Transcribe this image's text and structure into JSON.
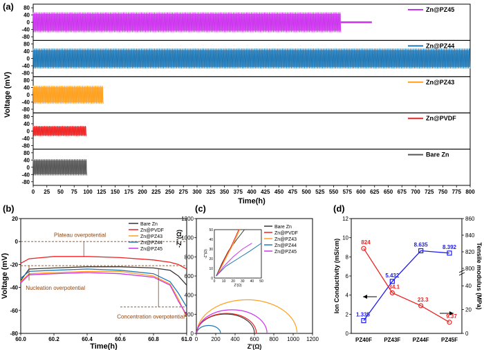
{
  "chart_data": [
    {
      "panel": "(a)",
      "type": "line",
      "xlabel": "Time(h)",
      "ylabel": "Voltage (mV)",
      "xlim": [
        0,
        800
      ],
      "x_ticks": [
        0,
        25,
        50,
        75,
        100,
        125,
        150,
        175,
        200,
        225,
        250,
        275,
        300,
        325,
        350,
        375,
        400,
        425,
        450,
        475,
        500,
        525,
        550,
        575,
        600,
        625,
        650,
        675,
        700,
        725,
        750,
        775,
        800
      ],
      "y_ticks": [
        "-80",
        "-40",
        "0",
        "40",
        "80"
      ],
      "y_ticks_top": [
        "80",
        "40",
        "0",
        "-40",
        "-80"
      ],
      "legend_placement": "top-right of each subplot",
      "series": [
        {
          "name": "Zn@PZ45",
          "color": "#cc33ee",
          "end_time_h": 620,
          "amplitude_mV": 55,
          "short_circuit_h": 563
        },
        {
          "name": "Zn@PZ44",
          "color": "#1f77b4",
          "end_time_h": 800,
          "amplitude_mV": 55
        },
        {
          "name": "Zn@PZ43",
          "color": "#ff9f1c",
          "end_time_h": 128,
          "amplitude_mV": 50
        },
        {
          "name": "Zn@PVDF",
          "color": "#ee2222",
          "end_time_h": 97,
          "amplitude_mV": 28
        },
        {
          "name": "Bare Zn",
          "color": "#555555",
          "end_time_h": 98,
          "amplitude_mV": 45
        }
      ]
    },
    {
      "panel": "(b)",
      "type": "line",
      "xlabel": "Time(h)",
      "ylabel": "Voltage (mV)",
      "xlim": [
        60.0,
        61.0
      ],
      "ylim": [
        -80,
        20
      ],
      "x_ticks": [
        "60.0",
        "60.2",
        "60.4",
        "60.6",
        "60.8",
        "61.0"
      ],
      "y_ticks": [
        "20",
        "0",
        "-20",
        "-40",
        "-60",
        "-80"
      ],
      "annotations": [
        "Plateau overpotential",
        "Nucleation overpotential",
        "Concentration overpotential"
      ],
      "series": [
        {
          "name": "Bare Zn",
          "color": "#333333",
          "x": [
            60.0,
            60.05,
            60.2,
            60.4,
            60.6,
            60.8,
            60.9,
            60.95,
            61.0
          ],
          "y": [
            -34,
            -24,
            -23,
            -22,
            -22,
            -23,
            -25,
            -30,
            -38
          ]
        },
        {
          "name": "Zn@PVDF",
          "color": "#ee2222",
          "x": [
            60.0,
            60.05,
            60.2,
            60.4,
            60.6,
            60.8,
            60.9,
            60.95,
            61.0
          ],
          "y": [
            -19,
            -15,
            -13,
            -13,
            -14,
            -16,
            -18,
            -20,
            -24
          ]
        },
        {
          "name": "Zn@PZ43",
          "color": "#ff9f1c",
          "x": [
            60.0,
            60.05,
            60.2,
            60.4,
            60.6,
            60.8,
            60.9,
            60.95,
            61.0
          ],
          "y": [
            -35,
            -28,
            -27,
            -26,
            -26,
            -30,
            -37,
            -50,
            -66
          ]
        },
        {
          "name": "Zn@PZ44",
          "color": "#1f77b4",
          "x": [
            60.0,
            60.05,
            60.2,
            60.4,
            60.6,
            60.8,
            60.9,
            60.95,
            61.0
          ],
          "y": [
            -32,
            -26,
            -25,
            -24,
            -25,
            -28,
            -35,
            -45,
            -57
          ]
        },
        {
          "name": "Zn@PZ45",
          "color": "#cc33ee",
          "x": [
            60.0,
            60.05,
            60.2,
            60.4,
            60.6,
            60.8,
            60.9,
            60.95,
            61.0
          ],
          "y": [
            -36,
            -29,
            -28,
            -27,
            -28,
            -31,
            -38,
            -52,
            -64
          ]
        }
      ]
    },
    {
      "panel": "(c)",
      "type": "scatter",
      "xlabel": "Z'(Ω)",
      "ylabel": "-Z''(Ω)",
      "xlim": [
        0,
        1200
      ],
      "ylim": [
        0,
        1200
      ],
      "x_ticks": [
        "0",
        "200",
        "400",
        "600",
        "800",
        "1000",
        "1200"
      ],
      "y_ticks": [
        "0",
        "200",
        "400",
        "600",
        "800",
        "1000",
        "1200"
      ],
      "inset": {
        "xlim": [
          0,
          50
        ],
        "ylim": [
          0,
          50
        ],
        "x_ticks": [
          "0",
          "10",
          "20",
          "30",
          "40",
          "50"
        ],
        "y_ticks": [
          "0",
          "10",
          "20",
          "30",
          "40",
          "50"
        ],
        "xlabel": "Z'(Ω)",
        "ylabel": "-Z''(Ω)"
      },
      "series": [
        {
          "name": "Bare Zn",
          "color": "#333333",
          "semicircle_Z_start": 5,
          "semicircle_Z_end": 600
        },
        {
          "name": "Zn@PVDF",
          "color": "#ee2222",
          "semicircle_Z_start": 5,
          "semicircle_Z_end": 620
        },
        {
          "name": "Zn@PZ43",
          "color": "#ff9f1c",
          "semicircle_Z_start": 5,
          "semicircle_Z_end": 1040
        },
        {
          "name": "Zn@PZ44",
          "color": "#1f77b4",
          "semicircle_Z_start": 5,
          "semicircle_Z_end": 250
        },
        {
          "name": "Zn@PZ45",
          "color": "#cc33ee",
          "semicircle_Z_start": 5,
          "semicircle_Z_end": 730
        }
      ]
    },
    {
      "panel": "(d)",
      "type": "line",
      "categories": [
        "PZ40F",
        "PZ43F",
        "PZ44F",
        "PZ45F"
      ],
      "ylabel": "Ion Conductivity (mS/cm)",
      "y2label": "Tensile modulus (MPa)",
      "ylim": [
        0,
        12
      ],
      "y_ticks": [
        "0",
        "2",
        "4",
        "6",
        "8",
        "10",
        "12"
      ],
      "y2_ticks_upper": [
        "800",
        "820",
        "840",
        "860"
      ],
      "y2_ticks_lower": [
        "0",
        "20",
        "40"
      ],
      "series": [
        {
          "name": "Ion Conductivity",
          "color": "#1a1aee",
          "values": [
            1.335,
            5.432,
            8.635,
            8.392
          ],
          "labels": [
            "1.335",
            "5.432",
            "8.635",
            "8.392"
          ]
        },
        {
          "name": "Tensile modulus",
          "color": "#ee2222",
          "values": [
            824,
            34.1,
            23.3,
            9.37
          ],
          "labels": [
            "824",
            "34.1",
            "23.3",
            "9.37"
          ]
        }
      ]
    }
  ],
  "panel_labels": [
    "(a)",
    "(b)",
    "(c)",
    "(d)"
  ]
}
